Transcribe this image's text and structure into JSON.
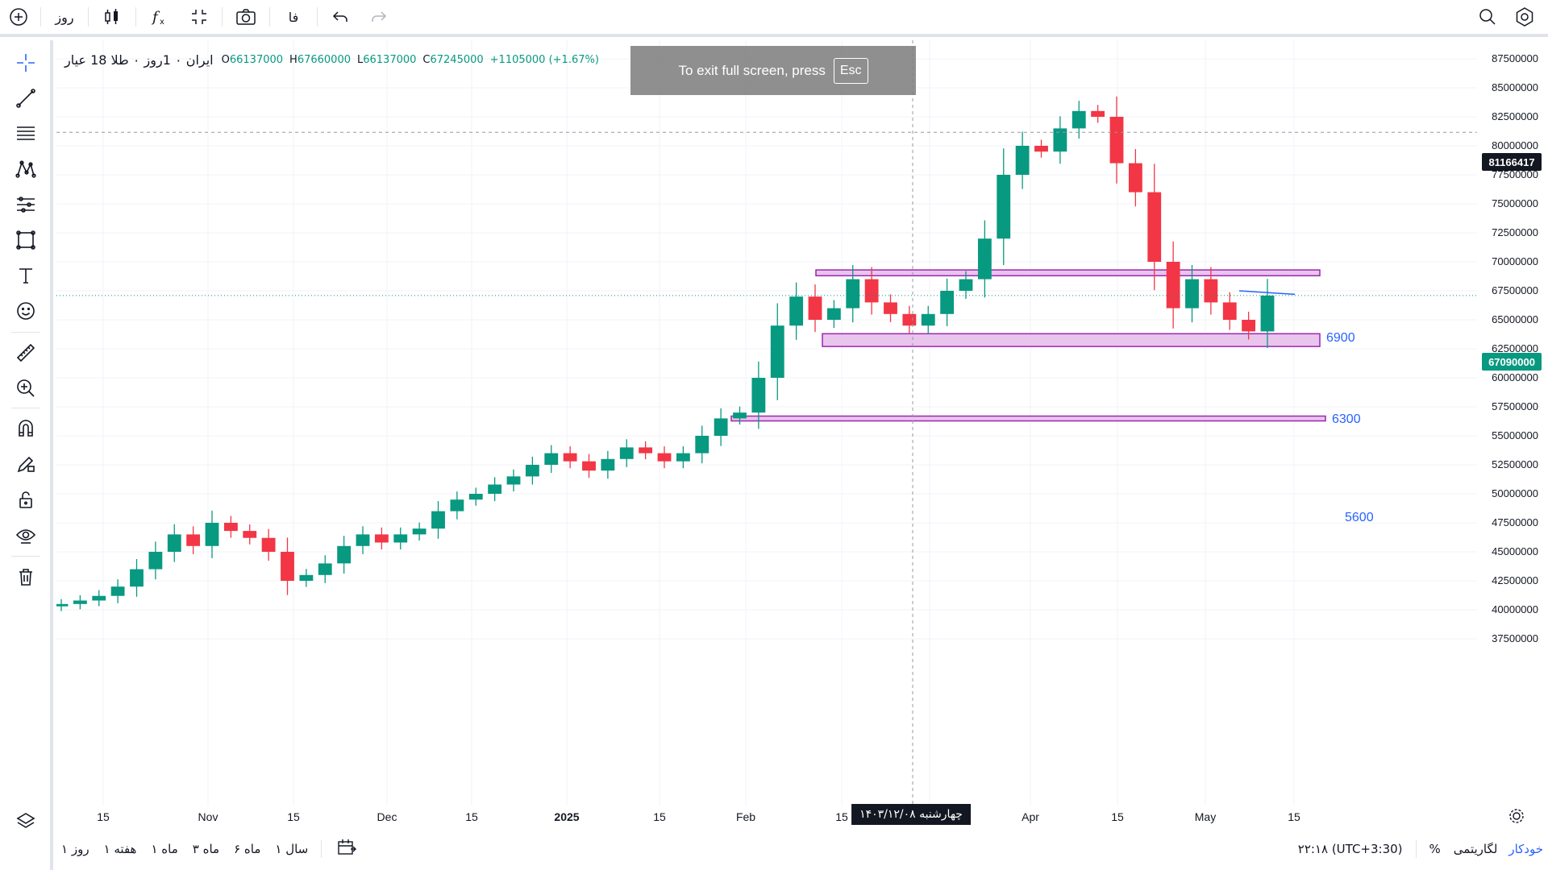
{
  "topbar": {
    "interval_label": "روز",
    "lang_label": "فا"
  },
  "legend": {
    "symbol": "ایران ۰ 1روز ۰ طلا 18 عیار",
    "open_key": "O",
    "open": "66137000",
    "high_key": "H",
    "high": "67660000",
    "low_key": "L",
    "low": "66137000",
    "close_key": "C",
    "close": "67245000",
    "change": "+1105000 (+1.67%)"
  },
  "fullscreen_notice": {
    "text": "To exit full screen, press",
    "key": "Esc"
  },
  "price_axis": {
    "labels": [
      "87500000",
      "85000000",
      "82500000",
      "80000000",
      "77500000",
      "75000000",
      "72500000",
      "70000000",
      "67500000",
      "65000000",
      "62500000",
      "60000000",
      "57500000",
      "55000000",
      "52500000",
      "50000000",
      "47500000",
      "45000000",
      "42500000",
      "40000000",
      "37500000"
    ],
    "crosshair_price": "81166417",
    "last_price": "67090000"
  },
  "time_axis": {
    "labels": [
      "15",
      "Nov",
      "15",
      "Dec",
      "15",
      "2025",
      "15",
      "Feb",
      "15",
      "15",
      "Apr",
      "15",
      "May",
      "15"
    ],
    "crosshair_date": "چهارشنبه ۱۴۰۳/۱۲/۰۸"
  },
  "zones": [
    {
      "label": "6900"
    },
    {
      "label": "6300"
    },
    {
      "label": "5600"
    }
  ],
  "bottombar": {
    "ranges": [
      "سال ۱",
      "ماه ۶",
      "ماه ۳",
      "ماه ۱",
      "هفته ۱",
      "روز ۱"
    ],
    "clock": "۲۲:۱۸ (UTC+3:30)",
    "percent": "%",
    "log": "لگاریتمی",
    "auto": "خودکار"
  },
  "colors": {
    "up": "#089981",
    "down": "#f23645",
    "zone_fill": "#e9c4ec",
    "zone_border": "#9c27b0",
    "accent": "#2962ff"
  },
  "chart_data": {
    "type": "candlestick",
    "title": "ایران ۰ 1روز ۰ طلا 18 عیار",
    "ylim": [
      36000000,
      89000000
    ],
    "series": [
      {
        "values": [
          40500000,
          40800000,
          41200000,
          42000000,
          43500000,
          45000000,
          46500000,
          45500000,
          47500000,
          46800000,
          46200000,
          45000000,
          42500000,
          43000000,
          44000000,
          45500000,
          46500000,
          45800000,
          46500000,
          47000000,
          48500000,
          49500000,
          50000000,
          50800000,
          51500000,
          52500000,
          53500000,
          52800000,
          52000000,
          53000000,
          54000000,
          53500000,
          52800000,
          53500000,
          55000000,
          56500000,
          57000000,
          60000000,
          64500000,
          67000000,
          65000000,
          66000000,
          68500000,
          66500000,
          65500000,
          64500000,
          65500000,
          67500000,
          68500000,
          72000000,
          77500000,
          80000000,
          79500000,
          81500000,
          83000000,
          82500000,
          78500000,
          76000000,
          70000000,
          66000000,
          68500000,
          66500000,
          65000000,
          64000000,
          67090000
        ]
      }
    ]
  }
}
